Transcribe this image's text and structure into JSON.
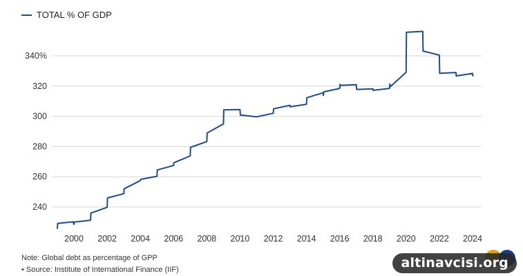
{
  "legend": {
    "label": "TOTAL % OF GDP",
    "color": "#1f4a84"
  },
  "notes": {
    "line1": "Note: Global debt as percentage of GPP",
    "line2": "• Source: Institute of International Finance (IIF)"
  },
  "watermark": {
    "text": "altinavcisi.org"
  },
  "chart_data": {
    "type": "line",
    "title": "",
    "xlabel": "",
    "ylabel": "",
    "xlim": [
      1998.9,
      2024.6
    ],
    "ylim": [
      223,
      358
    ],
    "grid": true,
    "legend_position": "top-left",
    "y_ticks": [
      {
        "value": 240,
        "label": "240"
      },
      {
        "value": 260,
        "label": "260"
      },
      {
        "value": 280,
        "label": "280"
      },
      {
        "value": 300,
        "label": "300"
      },
      {
        "value": 320,
        "label": "320"
      },
      {
        "value": 340,
        "label": "340%"
      }
    ],
    "x_ticks": [
      2000,
      2002,
      2004,
      2006,
      2008,
      2010,
      2012,
      2014,
      2016,
      2018,
      2020,
      2022,
      2024
    ],
    "series": [
      {
        "name": "TOTAL % OF GDP",
        "color": "#1f4a84",
        "points": [
          [
            1999.0,
            225.5
          ],
          [
            1999.02,
            229.2
          ],
          [
            1999.95,
            230.2
          ],
          [
            2000.0,
            228.5
          ],
          [
            2000.02,
            230.0
          ],
          [
            2001.0,
            231.3
          ],
          [
            2001.02,
            236.0
          ],
          [
            2002.0,
            239.8
          ],
          [
            2002.02,
            246.0
          ],
          [
            2003.0,
            248.8
          ],
          [
            2003.02,
            252.0
          ],
          [
            2004.0,
            257.5
          ],
          [
            2004.02,
            258.3
          ],
          [
            2005.0,
            260.3
          ],
          [
            2005.02,
            264.5
          ],
          [
            2006.0,
            267.5
          ],
          [
            2006.02,
            269.3
          ],
          [
            2007.0,
            273.8
          ],
          [
            2007.02,
            279.5
          ],
          [
            2008.0,
            283.3
          ],
          [
            2008.02,
            289.0
          ],
          [
            2009.0,
            295.0
          ],
          [
            2009.02,
            304.3
          ],
          [
            2010.0,
            304.5
          ],
          [
            2010.02,
            300.8
          ],
          [
            2011.0,
            299.7
          ],
          [
            2012.0,
            302.0
          ],
          [
            2012.02,
            305.0
          ],
          [
            2013.0,
            307.3
          ],
          [
            2013.02,
            306.3
          ],
          [
            2014.0,
            308.0
          ],
          [
            2014.02,
            312.3
          ],
          [
            2015.0,
            315.6
          ],
          [
            2015.02,
            313.8
          ],
          [
            2015.04,
            316.2
          ],
          [
            2016.0,
            318.5
          ],
          [
            2016.02,
            321.2
          ],
          [
            2016.04,
            320.5
          ],
          [
            2017.0,
            320.9
          ],
          [
            2017.02,
            317.8
          ],
          [
            2018.0,
            318.2
          ],
          [
            2018.02,
            317.2
          ],
          [
            2019.0,
            318.5
          ],
          [
            2019.02,
            321.4
          ],
          [
            2019.04,
            319.6
          ],
          [
            2020.0,
            329.2
          ],
          [
            2020.02,
            355.6
          ],
          [
            2021.0,
            356.2
          ],
          [
            2021.02,
            343.2
          ],
          [
            2022.0,
            340.5
          ],
          [
            2022.02,
            328.5
          ],
          [
            2023.0,
            329.0
          ],
          [
            2023.02,
            326.7
          ],
          [
            2024.0,
            328.4
          ],
          [
            2024.02,
            326.4
          ]
        ]
      }
    ]
  }
}
